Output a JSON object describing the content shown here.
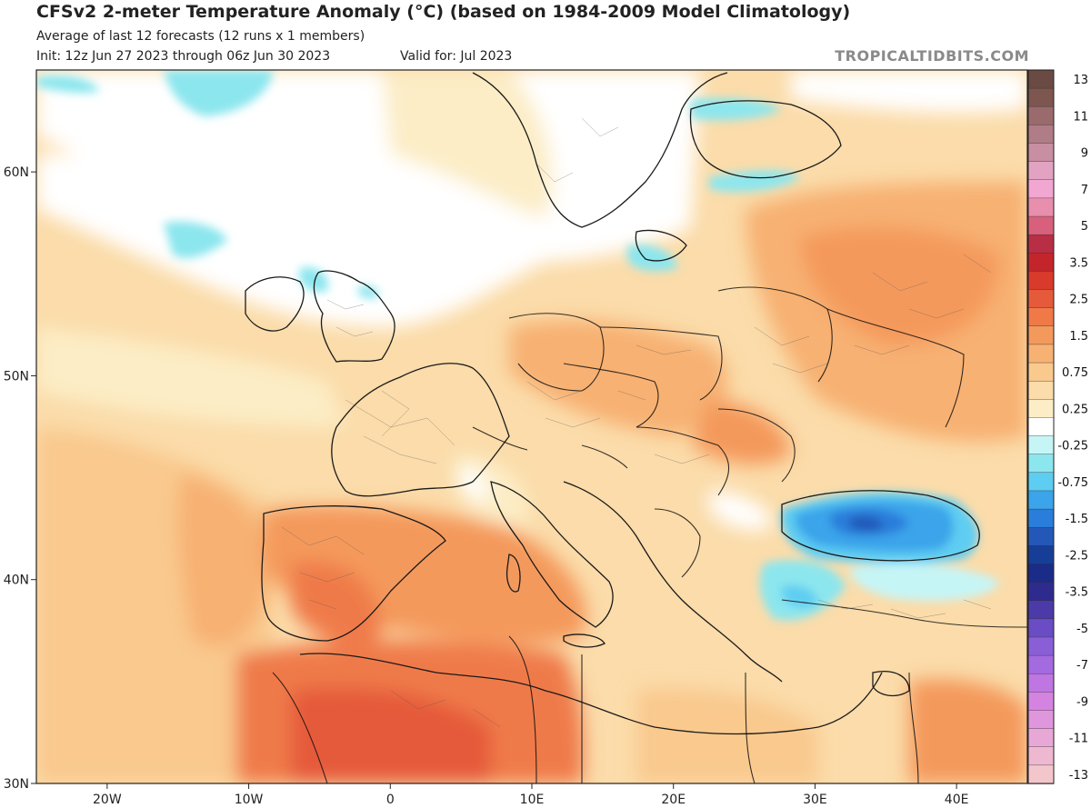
{
  "header": {
    "title": "CFSv2 2-meter Temperature Anomaly (°C) (based on 1984-2009 Model Climatology)",
    "subtitle": "Average of last 12 forecasts (12 runs x 1 members)",
    "init": "Init: 12z Jun 27 2023 through 06z Jun 30 2023",
    "valid": "Valid for: Jul 2023",
    "brand": "TROPICALTIDBITS.COM"
  },
  "map": {
    "lon_range": [
      -25,
      45
    ],
    "lat_range": [
      30,
      65
    ],
    "lat_ticks": [
      {
        "label": "60N",
        "lat": 60
      },
      {
        "label": "50N",
        "lat": 50
      },
      {
        "label": "40N",
        "lat": 40
      },
      {
        "label": "30N",
        "lat": 30
      }
    ],
    "lon_ticks": [
      {
        "label": "20W",
        "lon": -20
      },
      {
        "label": "10W",
        "lon": -10
      },
      {
        "label": "0",
        "lon": 0
      },
      {
        "label": "10E",
        "lon": 10
      },
      {
        "label": "20E",
        "lon": 20
      },
      {
        "label": "30E",
        "lon": 30
      },
      {
        "label": "40E",
        "lon": 40
      }
    ]
  },
  "colorbar": {
    "bins": [
      {
        "label": "13",
        "color": "#6b4a44"
      },
      {
        "label": "",
        "color": "#7d5650"
      },
      {
        "label": "11",
        "color": "#9a6a6c"
      },
      {
        "label": "",
        "color": "#b07c86"
      },
      {
        "label": "9",
        "color": "#c88ea2"
      },
      {
        "label": "",
        "color": "#e2a3c2"
      },
      {
        "label": "7",
        "color": "#f2a6d2"
      },
      {
        "label": "",
        "color": "#e88fae"
      },
      {
        "label": "5",
        "color": "#d8607c"
      },
      {
        "label": "",
        "color": "#b82e44"
      },
      {
        "label": "3.5",
        "color": "#c4252a"
      },
      {
        "label": "",
        "color": "#d83a2c"
      },
      {
        "label": "2.5",
        "color": "#e55a3a"
      },
      {
        "label": "",
        "color": "#ef7a48"
      },
      {
        "label": "1.5",
        "color": "#f4995c"
      },
      {
        "label": "",
        "color": "#f7b172"
      },
      {
        "label": "0.75",
        "color": "#f9c98e"
      },
      {
        "label": "",
        "color": "#fbdcaa"
      },
      {
        "label": "0.25",
        "color": "#fcedc6"
      },
      {
        "label": "",
        "color": "#ffffff"
      },
      {
        "label": "-0.25",
        "color": "#c6f5f6"
      },
      {
        "label": "",
        "color": "#8ce6ee"
      },
      {
        "label": "-0.75",
        "color": "#5ecdf2"
      },
      {
        "label": "",
        "color": "#3ba4ea"
      },
      {
        "label": "-1.5",
        "color": "#2a7dda"
      },
      {
        "label": "",
        "color": "#2458b8"
      },
      {
        "label": "-2.5",
        "color": "#173e96"
      },
      {
        "label": "",
        "color": "#1a2b88"
      },
      {
        "label": "-3.5",
        "color": "#2e2a8e"
      },
      {
        "label": "",
        "color": "#4b3aa8"
      },
      {
        "label": "-5",
        "color": "#6a4cc4"
      },
      {
        "label": "",
        "color": "#8a5ed6"
      },
      {
        "label": "-7",
        "color": "#a46ae0"
      },
      {
        "label": "",
        "color": "#bf76e2"
      },
      {
        "label": "-9",
        "color": "#d484e0"
      },
      {
        "label": "",
        "color": "#e096dc"
      },
      {
        "label": "-11",
        "color": "#e8a8d6"
      },
      {
        "label": "",
        "color": "#eeb8d0"
      },
      {
        "label": "-13",
        "color": "#f3c6cc"
      }
    ]
  }
}
